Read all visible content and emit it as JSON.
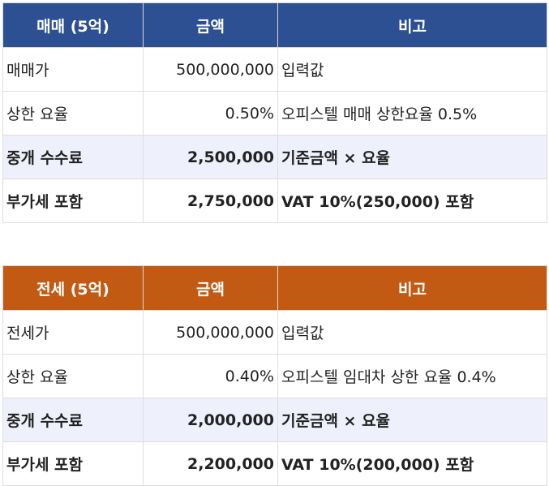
{
  "sale_table": {
    "header": [
      "매매 (5억)",
      "금액",
      "비고"
    ],
    "colors": {
      "header_bg": "#2c5092",
      "highlight_bg": "#eef0fb"
    },
    "rows": [
      {
        "label": "매매가",
        "amount": "500,000,000",
        "note": "입력값"
      },
      {
        "label": "상한 요율",
        "amount": "0.50%",
        "note": "오피스텔 매매 상한요율 0.5%"
      },
      {
        "label": "중개 수수료",
        "amount": "2,500,000",
        "note": "기준금액 × 요율"
      },
      {
        "label": "부가세 포함",
        "amount": "2,750,000",
        "note": "VAT 10%(250,000) 포함"
      }
    ]
  },
  "lease_table": {
    "header": [
      "전세 (5억)",
      "금액",
      "비고"
    ],
    "colors": {
      "header_bg": "#c35a14",
      "highlight_bg": "#eef0fb"
    },
    "rows": [
      {
        "label": "전세가",
        "amount": "500,000,000",
        "note": "입력값"
      },
      {
        "label": "상한 요율",
        "amount": "0.40%",
        "note": "오피스텔 임대차 상한 요율 0.4%"
      },
      {
        "label": "중개 수수료",
        "amount": "2,000,000",
        "note": "기준금액 × 요율"
      },
      {
        "label": "부가세 포함",
        "amount": "2,200,000",
        "note": "VAT 10%(200,000) 포함"
      }
    ]
  }
}
